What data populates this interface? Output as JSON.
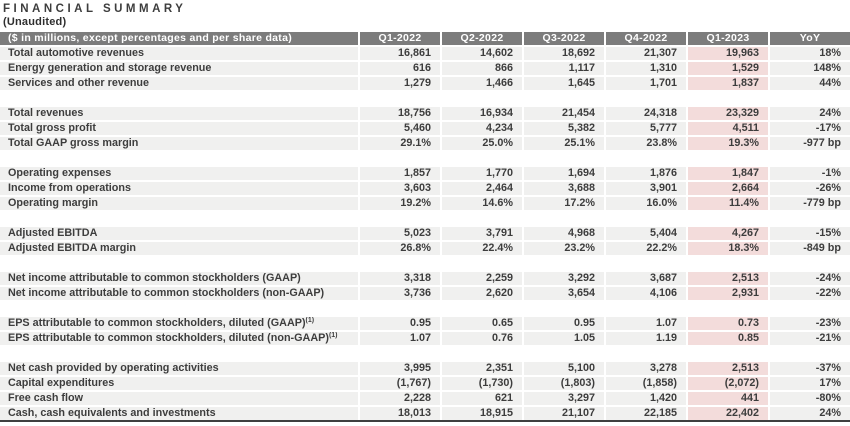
{
  "page": {
    "title": "FINANCIAL SUMMARY",
    "subtitle": "(Unaudited)"
  },
  "table": {
    "header": {
      "label": "($ in millions, except percentages and per share data)",
      "columns": [
        "Q1-2022",
        "Q2-2022",
        "Q3-2022",
        "Q4-2022",
        "Q1-2023",
        "YoY"
      ]
    },
    "highlight_column": "Q1-2023",
    "colors": {
      "header_bg": "#7c7c7c",
      "header_text": "#ffffff",
      "row_bg": "#f0f0ef",
      "highlight_bg": "#f3dcdb",
      "text": "#3d3d3d",
      "table_bottom_border": "#3f3f3f"
    },
    "sections": [
      {
        "rows": [
          {
            "label": "Total automotive revenues",
            "values": [
              "16,861",
              "14,602",
              "18,692",
              "21,307",
              "19,963",
              "18%"
            ]
          },
          {
            "label": "Energy generation and storage revenue",
            "values": [
              "616",
              "866",
              "1,117",
              "1,310",
              "1,529",
              "148%"
            ]
          },
          {
            "label": "Services and other revenue",
            "values": [
              "1,279",
              "1,466",
              "1,645",
              "1,701",
              "1,837",
              "44%"
            ]
          }
        ]
      },
      {
        "rows": [
          {
            "label": "Total revenues",
            "values": [
              "18,756",
              "16,934",
              "21,454",
              "24,318",
              "23,329",
              "24%"
            ]
          },
          {
            "label": "Total gross profit",
            "values": [
              "5,460",
              "4,234",
              "5,382",
              "5,777",
              "4,511",
              "-17%"
            ]
          },
          {
            "label": "Total GAAP gross margin",
            "values": [
              "29.1%",
              "25.0%",
              "25.1%",
              "23.8%",
              "19.3%",
              "-977 bp"
            ]
          }
        ]
      },
      {
        "rows": [
          {
            "label": "Operating expenses",
            "values": [
              "1,857",
              "1,770",
              "1,694",
              "1,876",
              "1,847",
              "-1%"
            ]
          },
          {
            "label": "Income from operations",
            "values": [
              "3,603",
              "2,464",
              "3,688",
              "3,901",
              "2,664",
              "-26%"
            ]
          },
          {
            "label": "Operating margin",
            "values": [
              "19.2%",
              "14.6%",
              "17.2%",
              "16.0%",
              "11.4%",
              "-779 bp"
            ]
          }
        ]
      },
      {
        "rows": [
          {
            "label": "Adjusted EBITDA",
            "values": [
              "5,023",
              "3,791",
              "4,968",
              "5,404",
              "4,267",
              "-15%"
            ]
          },
          {
            "label": "Adjusted EBITDA margin",
            "values": [
              "26.8%",
              "22.4%",
              "23.2%",
              "22.2%",
              "18.3%",
              "-849 bp"
            ]
          }
        ]
      },
      {
        "rows": [
          {
            "label": "Net income attributable to common stockholders (GAAP)",
            "values": [
              "3,318",
              "2,259",
              "3,292",
              "3,687",
              "2,513",
              "-24%"
            ]
          },
          {
            "label": "Net income attributable to common stockholders (non-GAAP)",
            "values": [
              "3,736",
              "2,620",
              "3,654",
              "4,106",
              "2,931",
              "-22%"
            ]
          }
        ]
      },
      {
        "rows": [
          {
            "label": "EPS attributable to common stockholders, diluted (GAAP)",
            "sup": "(1)",
            "values": [
              "0.95",
              "0.65",
              "0.95",
              "1.07",
              "0.73",
              "-23%"
            ]
          },
          {
            "label": "EPS attributable to common stockholders, diluted (non-GAAP)",
            "sup": "(1)",
            "values": [
              "1.07",
              "0.76",
              "1.05",
              "1.19",
              "0.85",
              "-21%"
            ]
          }
        ]
      },
      {
        "rows": [
          {
            "label": "Net cash provided by operating activities",
            "values": [
              "3,995",
              "2,351",
              "5,100",
              "3,278",
              "2,513",
              "-37%"
            ]
          },
          {
            "label": "Capital expenditures",
            "values": [
              "(1,767)",
              "(1,730)",
              "(1,803)",
              "(1,858)",
              "(2,072)",
              "17%"
            ]
          },
          {
            "label": "Free cash flow",
            "values": [
              "2,228",
              "621",
              "3,297",
              "1,420",
              "441",
              "-80%"
            ]
          },
          {
            "label": "Cash, cash equivalents and investments",
            "values": [
              "18,013",
              "18,915",
              "21,107",
              "22,185",
              "22,402",
              "24%"
            ]
          }
        ]
      }
    ]
  }
}
